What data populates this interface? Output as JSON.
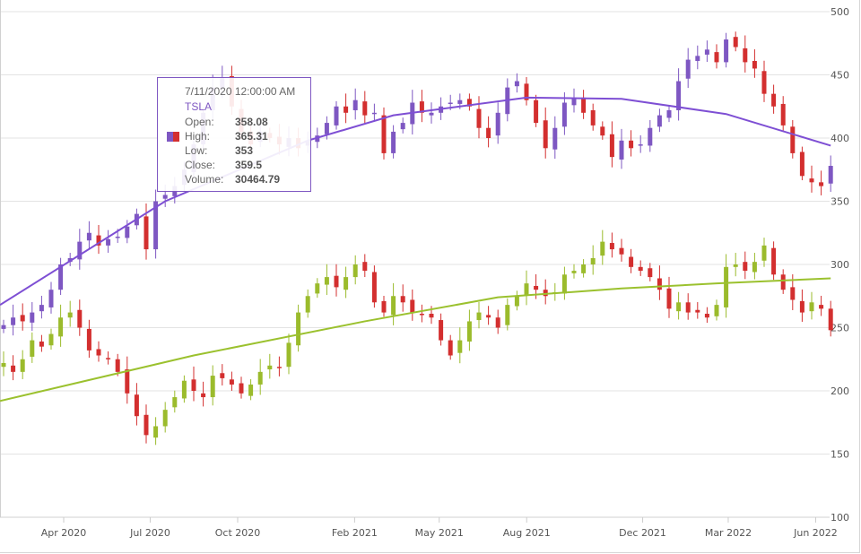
{
  "chart_data": {
    "type": "candlestick",
    "x_start": "2020-01-25",
    "x_step_days": 10,
    "ylim": [
      100,
      500
    ],
    "y_ticks": [
      "100",
      "150",
      "200",
      "250",
      "300",
      "350",
      "400",
      "450",
      "500"
    ],
    "x_ticks": [
      {
        "label": "Apr 2020",
        "date": "2020-04-01"
      },
      {
        "label": "Jul 2020",
        "date": "2020-07-01"
      },
      {
        "label": "Oct 2020",
        "date": "2020-10-01"
      },
      {
        "label": "Feb 2021",
        "date": "2021-02-01"
      },
      {
        "label": "May 2021",
        "date": "2021-05-01"
      },
      {
        "label": "Aug 2021",
        "date": "2021-08-01"
      },
      {
        "label": "Dec 2021",
        "date": "2021-12-01"
      },
      {
        "label": "Mar 2022",
        "date": "2022-03-01"
      },
      {
        "label": "Jun 2022",
        "date": "2022-06-01"
      }
    ],
    "grid": true,
    "wick": 7,
    "series": [
      {
        "name": "TSLA",
        "up_color": "#7e57c2",
        "down_color": "#d32f2f",
        "trend_color": "#7e4fd4",
        "close": [
          252,
          258,
          255,
          262,
          268,
          280,
          300,
          305,
          318,
          325,
          315,
          320,
          322,
          330,
          340,
          312,
          350,
          355,
          362,
          375,
          395,
          420,
          440,
          448,
          425,
          405,
          395,
          405,
          400,
          395,
          400,
          392,
          398,
          402,
          412,
          425,
          420,
          430,
          418,
          420,
          388,
          405,
          412,
          428,
          420,
          420,
          425,
          428,
          430,
          425,
          408,
          400,
          420,
          440,
          445,
          430,
          412,
          392,
          408,
          428,
          432,
          420,
          410,
          402,
          385,
          398,
          392,
          395,
          408,
          418,
          422,
          445,
          462,
          465,
          470,
          460,
          478,
          472,
          460,
          455,
          435,
          425,
          410,
          388,
          370,
          365,
          362,
          378
        ],
        "trend": [
          [
            0,
            268
          ],
          [
            17,
            350
          ],
          [
            32,
            398
          ],
          [
            41,
            418
          ],
          [
            55,
            432
          ],
          [
            65,
            431
          ],
          [
            76,
            419
          ],
          [
            87,
            394
          ]
        ]
      },
      {
        "up_color": "#9bbb2c",
        "down_color": "#d32f2f",
        "trend_color": "#9bc12e",
        "close": [
          222,
          215,
          225,
          240,
          235,
          245,
          258,
          262,
          250,
          232,
          228,
          225,
          215,
          198,
          180,
          165,
          172,
          185,
          195,
          208,
          200,
          195,
          212,
          210,
          205,
          198,
          205,
          215,
          220,
          218,
          238,
          262,
          275,
          285,
          290,
          282,
          290,
          300,
          295,
          270,
          262,
          275,
          270,
          262,
          260,
          258,
          240,
          228,
          240,
          255,
          262,
          258,
          250,
          268,
          275,
          285,
          280,
          275,
          278,
          292,
          295,
          300,
          305,
          318,
          312,
          308,
          298,
          295,
          290,
          280,
          265,
          270,
          262,
          262,
          258,
          268,
          298,
          300,
          295,
          302,
          315,
          292,
          280,
          272,
          262,
          270,
          265,
          248
        ],
        "trend": [
          [
            0,
            192
          ],
          [
            20,
            228
          ],
          [
            38,
            255
          ],
          [
            52,
            274
          ],
          [
            65,
            281
          ],
          [
            75,
            285
          ],
          [
            87,
            289
          ]
        ]
      }
    ]
  },
  "tooltip": {
    "date": "7/11/2020 12:00:00 AM",
    "series": "TSLA",
    "open_label": "Open:",
    "open": "358.08",
    "high_label": "High:",
    "high": "365.31",
    "low_label": "Low:",
    "low": "353",
    "close_label": "Close:",
    "close": "359.5",
    "volume_label": "Volume:",
    "volume": "30464.79"
  }
}
